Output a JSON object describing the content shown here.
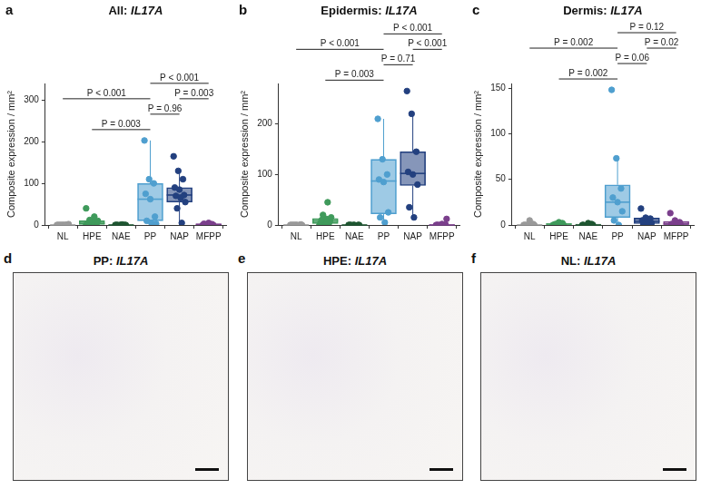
{
  "chart_data": [
    {
      "type": "box",
      "panel": "a",
      "title": "All: IL17A",
      "y_label": "Composite expression / mm²",
      "categories": [
        "NL",
        "HPE",
        "NAE",
        "PP",
        "NAP",
        "MFPP"
      ],
      "colors": [
        "#9a9a9a",
        "#3f9a5b",
        "#1e5631",
        "#4f9fcf",
        "#23407f",
        "#7b3f8c"
      ],
      "values": [
        [
          0,
          0,
          0,
          0,
          0,
          1,
          0,
          0,
          2,
          0,
          0
        ],
        [
          0,
          0,
          1,
          2,
          3,
          4,
          5,
          8,
          10,
          12,
          20,
          40
        ],
        [
          0,
          0,
          0,
          0,
          0,
          0,
          0,
          1
        ],
        [
          203,
          110,
          100,
          75,
          62,
          20,
          10,
          5,
          3
        ],
        [
          165,
          130,
          110,
          90,
          85,
          72,
          70,
          65,
          55,
          40,
          5
        ],
        [
          0,
          1,
          2,
          3,
          5,
          0,
          1,
          2
        ]
      ],
      "boxes": [
        {
          "min": 0,
          "q1": 0,
          "median": 0,
          "q3": 0,
          "max": 0
        },
        {
          "min": 0,
          "q1": 1,
          "median": 4,
          "q3": 10,
          "max": 20
        },
        {
          "min": 0,
          "q1": 0,
          "median": 0,
          "q3": 0,
          "max": 0
        },
        {
          "min": 3,
          "q1": 10,
          "median": 62,
          "q3": 100,
          "max": 203
        },
        {
          "min": 5,
          "q1": 55,
          "median": 72,
          "q3": 90,
          "max": 130
        },
        {
          "min": 0,
          "q1": 0.5,
          "median": 1.5,
          "q3": 2.5,
          "max": 5
        }
      ],
      "comparisons": [
        {
          "from": "HPE",
          "to": "PP",
          "label": "P = 0.003"
        },
        {
          "from": "PP",
          "to": "NAP",
          "label": "P = 0.96"
        },
        {
          "from": "NL",
          "to": "PP",
          "label": "P < 0.001"
        },
        {
          "from": "NAP",
          "to": "MFPP",
          "label": "P = 0.003"
        },
        {
          "from": "PP",
          "to": "MFPP",
          "label": "P < 0.001"
        }
      ],
      "ylim": [
        0,
        340
      ],
      "yticks": [
        0,
        100,
        200,
        300
      ],
      "grid": false
    },
    {
      "type": "box",
      "panel": "b",
      "title": "Epidermis: IL17A",
      "y_label": "Composite expression / mm²",
      "categories": [
        "NL",
        "HPE",
        "NAE",
        "PP",
        "NAP",
        "MFPP"
      ],
      "colors": [
        "#9a9a9a",
        "#3f9a5b",
        "#1e5631",
        "#4f9fcf",
        "#23407f",
        "#7b3f8c"
      ],
      "values": [
        [
          0,
          0,
          0,
          0,
          0,
          1,
          0,
          0,
          0,
          0
        ],
        [
          0,
          2,
          3,
          5,
          5,
          8,
          10,
          12,
          15,
          20,
          45
        ],
        [
          0,
          0,
          0,
          0,
          0,
          0,
          0
        ],
        [
          210,
          130,
          100,
          90,
          85,
          25,
          15,
          5
        ],
        [
          265,
          220,
          145,
          105,
          100,
          80,
          35,
          15
        ],
        [
          0,
          0,
          1,
          0,
          2,
          12,
          0
        ]
      ],
      "boxes": [
        {
          "min": 0,
          "q1": 0,
          "median": 0,
          "q3": 0,
          "max": 0
        },
        {
          "min": 0,
          "q1": 3,
          "median": 8,
          "q3": 13,
          "max": 20
        },
        {
          "min": 0,
          "q1": 0,
          "median": 0,
          "q3": 0,
          "max": 0
        },
        {
          "min": 5,
          "q1": 22,
          "median": 87,
          "q3": 130,
          "max": 210
        },
        {
          "min": 15,
          "q1": 78,
          "median": 102,
          "q3": 145,
          "max": 220
        },
        {
          "min": 0,
          "q1": 0,
          "median": 0,
          "q3": 1,
          "max": 2
        }
      ],
      "comparisons": [
        {
          "from": "HPE",
          "to": "PP",
          "label": "P = 0.003"
        },
        {
          "from": "PP",
          "to": "NAP",
          "label": "P = 0.71"
        },
        {
          "from": "NL",
          "to": "PP",
          "label": "P < 0.001"
        },
        {
          "from": "NAP",
          "to": "MFPP",
          "label": "P < 0.001"
        },
        {
          "from": "PP",
          "to": "MFPP",
          "label": "P < 0.001"
        }
      ],
      "ylim": [
        0,
        280
      ],
      "yticks": [
        0,
        100,
        200
      ],
      "grid": false
    },
    {
      "type": "box",
      "panel": "c",
      "title": "Dermis: IL17A",
      "y_label": "Composite expression / mm²",
      "categories": [
        "NL",
        "HPE",
        "NAE",
        "PP",
        "NAP",
        "MFPP"
      ],
      "colors": [
        "#9a9a9a",
        "#3f9a5b",
        "#1e5631",
        "#4f9fcf",
        "#23407f",
        "#7b3f8c"
      ],
      "values": [
        [
          0,
          0,
          1,
          0,
          5,
          0,
          0
        ],
        [
          0,
          1,
          2,
          0,
          3,
          0,
          1
        ],
        [
          0,
          0,
          1,
          0,
          2,
          0
        ],
        [
          148,
          73,
          40,
          30,
          25,
          15,
          5,
          0
        ],
        [
          18,
          8,
          7,
          5,
          3,
          2,
          1,
          0
        ],
        [
          13,
          5,
          3,
          1,
          0,
          0
        ]
      ],
      "boxes": [
        {
          "min": 0,
          "q1": 0,
          "median": 0,
          "q3": 0,
          "max": 0
        },
        {
          "min": 0,
          "q1": 0,
          "median": 1,
          "q3": 1.5,
          "max": 3
        },
        {
          "min": 0,
          "q1": 0,
          "median": 0,
          "q3": 1,
          "max": 2
        },
        {
          "min": 0,
          "q1": 8,
          "median": 25,
          "q3": 44,
          "max": 73
        },
        {
          "min": 0,
          "q1": 1.5,
          "median": 4,
          "q3": 7.5,
          "max": 8
        },
        {
          "min": 0,
          "q1": 0,
          "median": 1,
          "q3": 4,
          "max": 5
        }
      ],
      "comparisons": [
        {
          "from": "HPE",
          "to": "PP",
          "label": "P = 0.002"
        },
        {
          "from": "PP",
          "to": "NAP",
          "label": "P = 0.06"
        },
        {
          "from": "NL",
          "to": "PP",
          "label": "P = 0.002"
        },
        {
          "from": "NAP",
          "to": "MFPP",
          "label": "P = 0.02"
        },
        {
          "from": "PP",
          "to": "MFPP",
          "label": "P = 0.12"
        }
      ],
      "ylim": [
        0,
        155
      ],
      "yticks": [
        0,
        50,
        100,
        150
      ],
      "grid": false
    }
  ],
  "images": [
    {
      "panel": "d",
      "title": "PP: IL17A"
    },
    {
      "panel": "e",
      "title": "HPE: IL17A"
    },
    {
      "panel": "f",
      "title": "NL: IL17A"
    }
  ]
}
